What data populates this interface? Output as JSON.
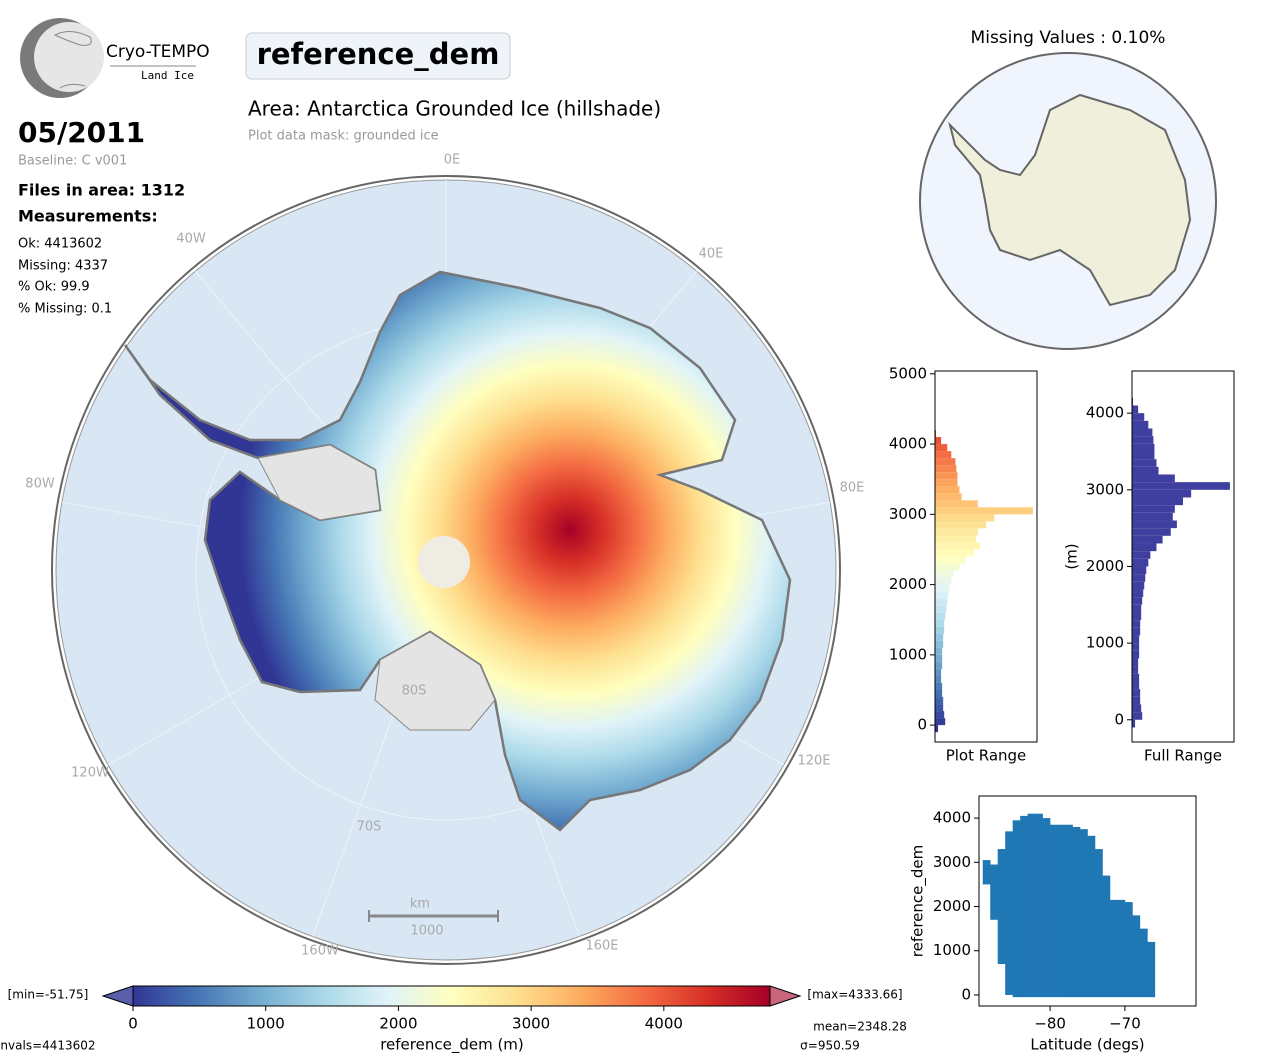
{
  "logo": {
    "name": "Cryo-TEMPO",
    "subtitle": "Land Ice"
  },
  "parameter": "reference_dem",
  "area_title": "Area: Antarctica Grounded Ice (hillshade)",
  "mask_note": "Plot data mask: grounded ice",
  "date": "05/2011",
  "baseline": "Baseline: C v001",
  "files": "Files in area: 1312",
  "measurements_heading": "Measurements:",
  "stats": [
    "Ok: 4413602",
    "Missing: 4337",
    "% Ok: 99.9",
    "% Missing: 0.1"
  ],
  "main_map": {
    "lon_labels": [
      "0E",
      "40E",
      "80E",
      "120E",
      "160E",
      "160W",
      "120W",
      "80W",
      "40W"
    ],
    "lat_labels": [
      "80S",
      "70S"
    ],
    "scale_unit": "km",
    "scale_length": "1000"
  },
  "inset_map": {
    "title": "Missing Values : 0.10%"
  },
  "chart_data": [
    {
      "type": "histogram",
      "xlabel": "Plot Range",
      "color_by": "colormap",
      "bins": [
        -100,
        0,
        100,
        200,
        300,
        400,
        500,
        600,
        700,
        800,
        900,
        1000,
        1100,
        1200,
        1300,
        1400,
        1500,
        1600,
        1700,
        1800,
        1900,
        2000,
        2100,
        2200,
        2300,
        2400,
        2500,
        2600,
        2700,
        2800,
        2900,
        3000,
        3100,
        3200,
        3300,
        3400,
        3500,
        3600,
        3700,
        3800,
        3900,
        4000,
        4100,
        4200
      ],
      "counts": [
        3,
        10,
        9,
        8,
        8,
        7,
        7,
        6,
        6,
        7,
        7,
        7,
        8,
        8,
        9,
        9,
        10,
        11,
        12,
        13,
        14,
        16,
        18,
        24,
        30,
        38,
        44,
        40,
        42,
        50,
        58,
        96,
        42,
        26,
        24,
        22,
        22,
        21,
        20,
        16,
        12,
        6,
        1
      ],
      "xlim": [
        0,
        100
      ],
      "ylim": [
        -240,
        5040
      ],
      "yticks": [
        0,
        1000,
        2000,
        3000,
        4000,
        5000
      ]
    },
    {
      "type": "histogram",
      "xlabel": "Full Range",
      "ylabel": "(m)",
      "color": "#3f3f9f",
      "bins": [
        -100,
        0,
        100,
        200,
        300,
        400,
        500,
        600,
        700,
        800,
        900,
        1000,
        1100,
        1200,
        1300,
        1400,
        1500,
        1600,
        1700,
        1800,
        1900,
        2000,
        2100,
        2200,
        2300,
        2400,
        2500,
        2600,
        2700,
        2800,
        2900,
        3000,
        3100,
        3200,
        3300,
        3400,
        3500,
        3600,
        3700,
        3800,
        3900,
        4000,
        4100,
        4200
      ],
      "counts": [
        3,
        10,
        9,
        8,
        8,
        7,
        7,
        6,
        6,
        7,
        7,
        7,
        8,
        8,
        9,
        9,
        10,
        11,
        12,
        13,
        14,
        16,
        18,
        24,
        30,
        38,
        44,
        40,
        42,
        50,
        58,
        96,
        42,
        26,
        24,
        22,
        22,
        21,
        20,
        16,
        12,
        6,
        1
      ],
      "xlim": [
        0,
        100
      ],
      "ylim": [
        -290,
        4550
      ],
      "yticks": [
        0,
        1000,
        2000,
        3000,
        4000
      ]
    },
    {
      "type": "scatter",
      "xlabel": "Latitude (degs)",
      "ylabel": "reference_dem",
      "color": "#1f77b4",
      "x": [
        -88.5,
        -87.5,
        -86.5,
        -85.5,
        -84.5,
        -83.5,
        -82.5,
        -81.5,
        -80.5,
        -79.5,
        -78.5,
        -77.5,
        -76.5,
        -75.5,
        -74.5,
        -73.5,
        -72.5,
        -71.5,
        -70.5,
        -69.5,
        -68.5,
        -67.5,
        -66.5
      ],
      "ymax": [
        3050,
        2950,
        3300,
        3700,
        3950,
        4050,
        4100,
        4100,
        4000,
        3850,
        3850,
        3850,
        3800,
        3750,
        3600,
        3300,
        2700,
        2150,
        2150,
        2100,
        1800,
        1500,
        1200
      ],
      "ymin": [
        2500,
        1700,
        700,
        0,
        -50,
        -50,
        -50,
        -50,
        -50,
        -50,
        -50,
        -50,
        -50,
        -50,
        -50,
        -50,
        -50,
        -50,
        -50,
        -50,
        -50,
        -50,
        -50
      ],
      "xlim": [
        -89.5,
        -60.5
      ],
      "ylim": [
        -250,
        4500
      ],
      "xticks": [
        {
          "value": -80,
          "label": "−80"
        },
        {
          "value": -70,
          "label": "−70"
        }
      ],
      "yticks": [
        0,
        1000,
        2000,
        3000,
        4000
      ]
    },
    {
      "type": "colorbar",
      "xlabel": "reference_dem (m)",
      "xlim": [
        0,
        4800
      ],
      "xticks": [
        0,
        1000,
        2000,
        3000,
        4000
      ],
      "colormap": [
        "#313695",
        "#4575b4",
        "#74add1",
        "#abd9e9",
        "#e0f3f8",
        "#ffffbf",
        "#fee090",
        "#fdae61",
        "#f46d43",
        "#d73027",
        "#a50026"
      ],
      "min_label": "[min=-51.75]",
      "max_label": "[max=4333.66]",
      "mean_label": "mean=2348.28",
      "std_label": "σ=950.59",
      "count_label": "nvals=4413602"
    }
  ]
}
